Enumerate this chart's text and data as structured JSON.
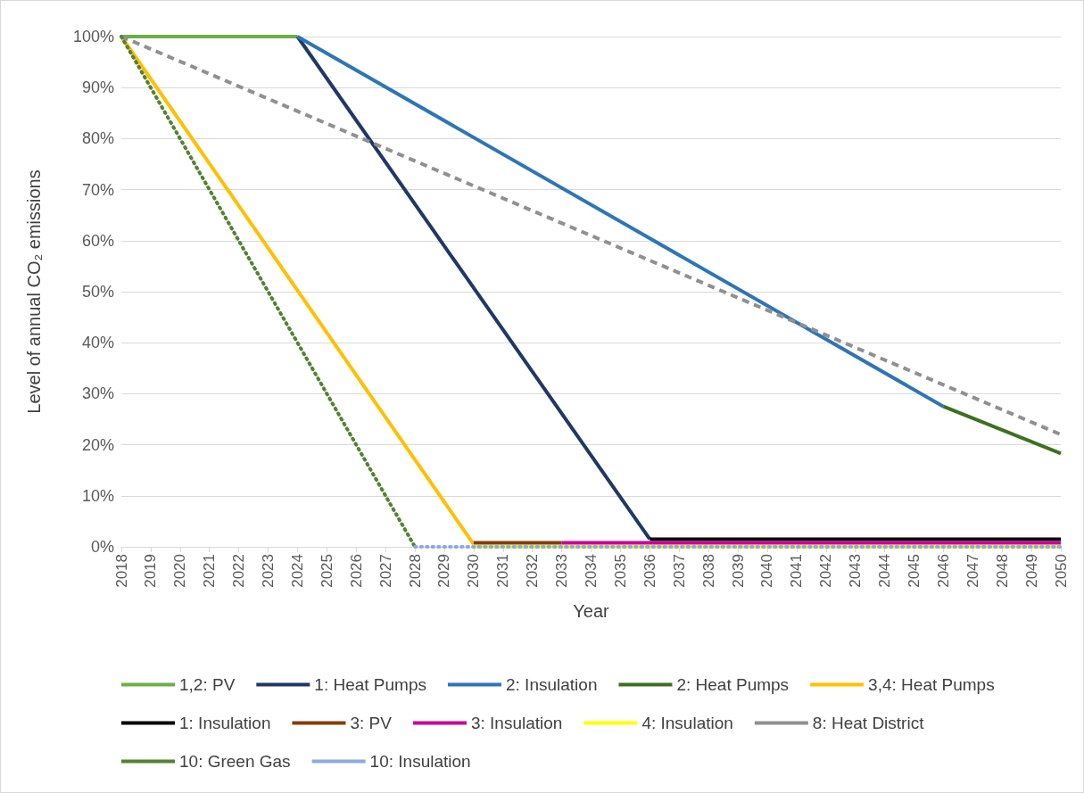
{
  "chart_data": {
    "type": "line",
    "xlabel": "Year",
    "ylabel": "Level of annual CO₂ emissions",
    "xlim": [
      2018,
      2050
    ],
    "xticks": [
      2018,
      2019,
      2020,
      2021,
      2022,
      2023,
      2024,
      2025,
      2026,
      2027,
      2028,
      2029,
      2030,
      2031,
      2032,
      2033,
      2034,
      2035,
      2036,
      2037,
      2038,
      2039,
      2040,
      2041,
      2042,
      2043,
      2044,
      2045,
      2046,
      2047,
      2048,
      2049,
      2050
    ],
    "ylim": [
      0,
      100
    ],
    "yticks": [
      {
        "value": 0,
        "label": "0%"
      },
      {
        "value": 10,
        "label": "10%"
      },
      {
        "value": 20,
        "label": "20%"
      },
      {
        "value": 30,
        "label": "30%"
      },
      {
        "value": 40,
        "label": "40%"
      },
      {
        "value": 50,
        "label": "50%"
      },
      {
        "value": 60,
        "label": "60%"
      },
      {
        "value": 70,
        "label": "70%"
      },
      {
        "value": 80,
        "label": "80%"
      },
      {
        "value": 90,
        "label": "90%"
      },
      {
        "value": 100,
        "label": "100%"
      }
    ],
    "grid": "y",
    "legend": "bottom",
    "marker": "none",
    "series": [
      {
        "name": "1,2: PV",
        "color": "#70ad47",
        "line_style": "solid",
        "x": [
          2018,
          2024
        ],
        "values": [
          100,
          100
        ]
      },
      {
        "name": "1: Heat Pumps",
        "color": "#203864",
        "line_style": "solid",
        "x": [
          2024,
          2036
        ],
        "values": [
          100,
          1.5
        ]
      },
      {
        "name": "2: Insulation",
        "color": "#2e75b6",
        "line_style": "solid",
        "x": [
          2024,
          2046
        ],
        "values": [
          100,
          27.5
        ]
      },
      {
        "name": "2: Heat Pumps",
        "color": "#3f6f21",
        "line_style": "solid",
        "x": [
          2046,
          2050
        ],
        "values": [
          27.5,
          18.3
        ]
      },
      {
        "name": "3,4: Heat Pumps",
        "color": "#ffc000",
        "line_style": "solid",
        "x": [
          2018,
          2030
        ],
        "values": [
          100,
          0.5
        ]
      },
      {
        "name": "1: Insulation",
        "color": "#000000",
        "line_style": "solid",
        "x": [
          2036,
          2050
        ],
        "values": [
          1.5,
          1.5
        ]
      },
      {
        "name": "3: PV",
        "color": "#843c0c",
        "line_style": "solid",
        "x": [
          2030,
          2033
        ],
        "values": [
          0.8,
          0.8
        ]
      },
      {
        "name": "3: Insulation",
        "color": "#cc0099",
        "line_style": "solid",
        "x": [
          2033,
          2050
        ],
        "values": [
          0.8,
          0.8
        ]
      },
      {
        "name": "4: Insulation",
        "color": "#ffff00",
        "line_style": "solid",
        "x": [
          2030,
          2050
        ],
        "values": [
          0,
          0
        ]
      },
      {
        "name": "8: Heat District",
        "color": "#909090",
        "line_style": "dashed",
        "x": [
          2018,
          2050
        ],
        "values": [
          100,
          22
        ]
      },
      {
        "name": "10: Green Gas",
        "color": "#548235",
        "line_style": "dotted",
        "x": [
          2018,
          2028
        ],
        "values": [
          100,
          0
        ]
      },
      {
        "name": "10: Insulation",
        "color": "#8faadc",
        "line_style": "dotted",
        "x": [
          2028,
          2050
        ],
        "values": [
          0,
          0
        ]
      }
    ]
  }
}
